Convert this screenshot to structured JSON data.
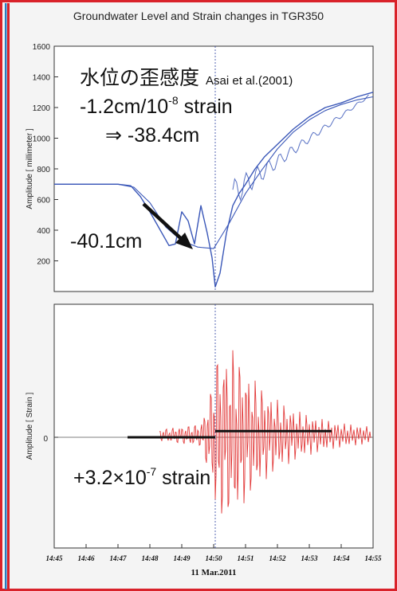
{
  "title": "Groundwater Level and Strain changes in TGR350",
  "colors": {
    "border_red": "#d9222a",
    "border_blue": "#2b7bc0",
    "water": "#3a57b8",
    "strain": "#e23b3b",
    "black": "#111111"
  },
  "chart_data": [
    {
      "type": "line",
      "ylabel": "Amplitude [ millimeter ]",
      "ylim": [
        0,
        1600
      ],
      "yticks": [
        "200",
        "400",
        "600",
        "800",
        "1000",
        "1200",
        "1400",
        "1600"
      ],
      "xlim": [
        0,
        10
      ],
      "series": [
        {
          "x": [
            0,
            1,
            2,
            2.4,
            2.7,
            3.0,
            3.3,
            3.6,
            3.8,
            4.0,
            4.2,
            4.4,
            4.6,
            4.8,
            4.95,
            5.05,
            5.2,
            5.4,
            5.6,
            5.8,
            6.0,
            6.3,
            6.6,
            7.0,
            7.5,
            8.0,
            8.5,
            9.0,
            9.5,
            10
          ],
          "y": [
            700,
            700,
            700,
            690,
            620,
            520,
            410,
            300,
            310,
            520,
            460,
            310,
            560,
            380,
            220,
            30,
            120,
            380,
            560,
            640,
            700,
            800,
            880,
            960,
            1060,
            1140,
            1200,
            1230,
            1270,
            1300
          ]
        },
        {
          "x": [
            0,
            1,
            2,
            2.5,
            3.0,
            3.5,
            4.0,
            4.5,
            5.0,
            5.5,
            6.0,
            6.5,
            7.0,
            7.5,
            8.0,
            8.5,
            9.0,
            9.5,
            10
          ],
          "y": [
            700,
            700,
            700,
            680,
            580,
            420,
            330,
            290,
            280,
            450,
            640,
            790,
            930,
            1040,
            1120,
            1180,
            1220,
            1250,
            1270
          ]
        }
      ],
      "annotations": {
        "heading": "水位の歪感度",
        "citation": "Asai et al.(2001)",
        "sensitivity_prefix": "-1.2cm/10",
        "sensitivity_exp": "-8",
        "sensitivity_suffix": " strain",
        "arrow_result": "⇒ -38.4cm",
        "observed": "-40.1cm"
      }
    },
    {
      "type": "line",
      "ylabel": "Amplitude [ Strain ]",
      "yticks": [
        "0"
      ],
      "ylim": [
        -1,
        1
      ],
      "xlabel": "11 Mar.2011",
      "x_ticks": [
        "14:45",
        "14:46",
        "14:47",
        "14:48",
        "14:49",
        "14:50",
        "14:51",
        "14:52",
        "14:53",
        "14:54",
        "14:55"
      ],
      "xlim": [
        0,
        10
      ],
      "marker_x": 5.05,
      "step": {
        "before": {
          "x": [
            2.3,
            5.05
          ],
          "y": 0.0
        },
        "after": {
          "x": [
            5.05,
            8.7
          ],
          "y": 0.06
        }
      },
      "annotations": {
        "step_prefix": "+3.2×10",
        "step_exp": "-7",
        "step_suffix": " strain"
      }
    }
  ]
}
